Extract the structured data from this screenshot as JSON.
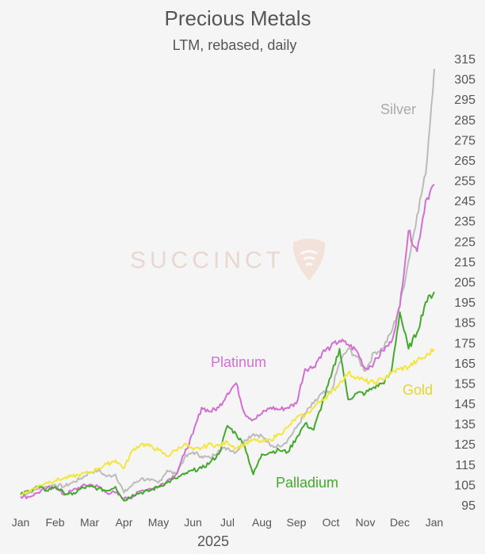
{
  "chart_data": {
    "type": "line",
    "title": "Precious Metals",
    "subtitle": "LTM, rebased, daily",
    "watermark": "SUCCINCT",
    "xlabel": "2025",
    "ylabel": "",
    "x_ticks": [
      "Jan",
      "Feb",
      "Mar",
      "Apr",
      "May",
      "Jun",
      "Jul",
      "Aug",
      "Sep",
      "Oct",
      "Nov",
      "Dec",
      "Jan"
    ],
    "y_ticks": [
      95,
      105,
      115,
      125,
      135,
      145,
      155,
      165,
      175,
      185,
      195,
      205,
      215,
      225,
      235,
      245,
      255,
      265,
      275,
      285,
      295,
      305,
      315
    ],
    "ylim": [
      95,
      315
    ],
    "y_axis_position": "right",
    "grid": false,
    "legend": "inline-labels",
    "series": [
      {
        "name": "Silver",
        "color": "#bbbbbb",
        "x": [
          0,
          0.25,
          0.5,
          0.75,
          1,
          1.25,
          1.5,
          1.75,
          2,
          2.25,
          2.5,
          2.75,
          3,
          3.25,
          3.5,
          3.75,
          4,
          4.25,
          4.5,
          4.75,
          5,
          5.25,
          5.5,
          5.75,
          6,
          6.25,
          6.5,
          6.75,
          7,
          7.25,
          7.5,
          7.75,
          8,
          8.25,
          8.5,
          8.75,
          9,
          9.25,
          9.5,
          9.75,
          10,
          10.25,
          10.5,
          10.75,
          11,
          11.25,
          11.5,
          11.75,
          12
        ],
        "values": [
          100,
          101,
          103,
          104,
          105,
          104,
          106,
          108,
          111,
          112,
          109,
          110,
          101,
          105,
          108,
          107,
          106,
          112,
          110,
          118,
          121,
          119,
          118,
          122,
          123,
          121,
          127,
          130,
          129,
          124,
          124,
          127,
          133,
          140,
          145,
          150,
          150,
          165,
          172,
          168,
          161,
          170,
          172,
          180,
          193,
          215,
          238,
          258,
          310
        ]
      },
      {
        "name": "Platinum",
        "color": "#d070d0",
        "x": [
          0,
          0.25,
          0.5,
          0.75,
          1,
          1.25,
          1.5,
          1.75,
          2,
          2.25,
          2.5,
          2.75,
          3,
          3.25,
          3.5,
          3.75,
          4,
          4.25,
          4.5,
          4.75,
          5,
          5.25,
          5.5,
          5.75,
          6,
          6.25,
          6.5,
          6.75,
          7,
          7.25,
          7.5,
          7.75,
          8,
          8.25,
          8.5,
          8.75,
          9,
          9.25,
          9.5,
          9.75,
          10,
          10.25,
          10.5,
          10.75,
          11,
          11.25,
          11.5,
          11.75,
          12
        ],
        "values": [
          99,
          99,
          101,
          103,
          104,
          100,
          102,
          104,
          105,
          104,
          101,
          101,
          98,
          99,
          102,
          103,
          104,
          107,
          110,
          120,
          130,
          143,
          141,
          143,
          150,
          155,
          140,
          137,
          140,
          143,
          142,
          143,
          145,
          162,
          163,
          170,
          173,
          176,
          174,
          171,
          162,
          165,
          171,
          175,
          193,
          230,
          220,
          245,
          253
        ]
      },
      {
        "name": "Palladium",
        "color": "#44a82e",
        "x": [
          0,
          0.25,
          0.5,
          0.75,
          1,
          1.25,
          1.5,
          1.75,
          2,
          2.25,
          2.5,
          2.75,
          3,
          3.25,
          3.5,
          3.75,
          4,
          4.25,
          4.5,
          4.75,
          5,
          5.25,
          5.5,
          5.75,
          6,
          6.25,
          6.5,
          6.75,
          7,
          7.25,
          7.5,
          7.75,
          8,
          8.25,
          8.5,
          8.75,
          9,
          9.25,
          9.5,
          9.75,
          10,
          10.25,
          10.5,
          10.75,
          11,
          11.25,
          11.5,
          11.75,
          12
        ],
        "values": [
          100,
          102,
          104,
          102,
          104,
          101,
          100,
          103,
          104,
          103,
          102,
          104,
          97,
          100,
          101,
          102,
          104,
          106,
          108,
          110,
          112,
          113,
          116,
          120,
          134,
          130,
          124,
          110,
          120,
          121,
          122,
          121,
          128,
          135,
          132,
          145,
          158,
          172,
          147,
          150,
          150,
          153,
          155,
          160,
          190,
          172,
          180,
          195,
          200
        ]
      },
      {
        "name": "Gold",
        "color": "#f2e640",
        "x": [
          0,
          0.25,
          0.5,
          0.75,
          1,
          1.25,
          1.5,
          1.75,
          2,
          2.25,
          2.5,
          2.75,
          3,
          3.25,
          3.5,
          3.75,
          4,
          4.25,
          4.5,
          4.75,
          5,
          5.25,
          5.5,
          5.75,
          6,
          6.25,
          6.5,
          6.75,
          7,
          7.25,
          7.5,
          7.75,
          8,
          8.25,
          8.5,
          8.75,
          9,
          9.25,
          9.5,
          9.75,
          10,
          10.25,
          10.5,
          10.75,
          11,
          11.25,
          11.5,
          11.75,
          12
        ],
        "values": [
          100,
          102,
          104,
          106,
          107,
          108,
          109,
          110,
          111,
          113,
          115,
          117,
          113,
          122,
          125,
          124,
          122,
          119,
          122,
          125,
          122,
          123,
          125,
          124,
          126,
          123,
          125,
          127,
          126,
          127,
          130,
          133,
          138,
          139,
          143,
          147,
          150,
          155,
          160,
          158,
          156,
          155,
          157,
          160,
          162,
          163,
          166,
          168,
          172
        ]
      }
    ],
    "labels": [
      {
        "text": "Silver",
        "series": "Silver"
      },
      {
        "text": "Platinum",
        "series": "Platinum"
      },
      {
        "text": "Gold",
        "series": "Gold"
      },
      {
        "text": "Palladium",
        "series": "Palladium"
      }
    ]
  }
}
